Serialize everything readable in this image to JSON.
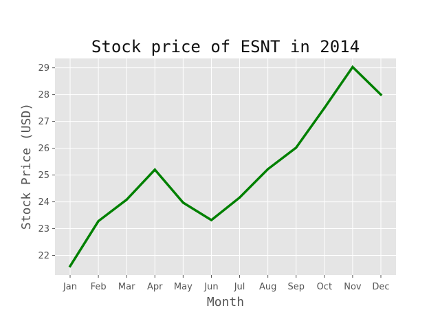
{
  "chart_data": {
    "type": "line",
    "title": "Stock price of ESNT in 2014",
    "xlabel": "Month",
    "ylabel": "Stock Price (USD)",
    "categories": [
      "Jan",
      "Feb",
      "Mar",
      "Apr",
      "May",
      "Jun",
      "Jul",
      "Aug",
      "Sep",
      "Oct",
      "Nov",
      "Dec"
    ],
    "series": [
      {
        "values": [
          21.6,
          23.28,
          24.08,
          25.2,
          23.97,
          23.32,
          24.16,
          25.22,
          26.02,
          27.5,
          29.03,
          28.0
        ],
        "color": "#008000"
      }
    ],
    "yticks": [
      22,
      23,
      24,
      25,
      26,
      27,
      28,
      29
    ],
    "ylim": [
      21.27,
      29.35
    ],
    "grid": true,
    "background_color": "#e5e5e5",
    "grid_color": "#ffffff"
  }
}
